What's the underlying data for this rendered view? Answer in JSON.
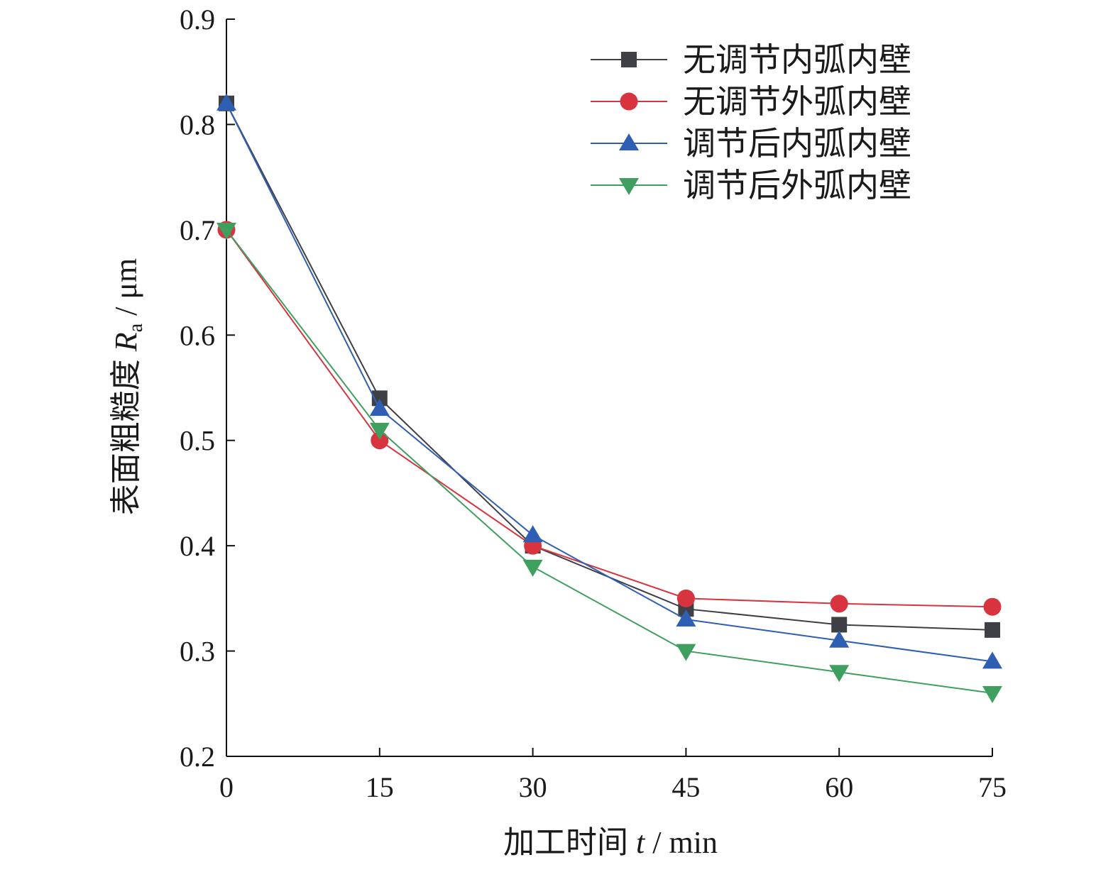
{
  "chart_data": {
    "type": "line",
    "x": [
      0,
      15,
      30,
      45,
      60,
      75
    ],
    "x_tick_labels": [
      "0",
      "15",
      "30",
      "45",
      "60",
      "75"
    ],
    "y_tick_labels": [
      "0.2",
      "0.3",
      "0.4",
      "0.5",
      "0.6",
      "0.7",
      "0.8",
      "0.9"
    ],
    "xlim": [
      0,
      75
    ],
    "ylim": [
      0.2,
      0.9
    ],
    "xlabel": {
      "prefix": "加工时间 ",
      "symbol": "t",
      "unit": " / min"
    },
    "ylabel": {
      "prefix": "表面粗糙度 ",
      "symbol": "R",
      "subscript": "a",
      "unit": " / μm"
    },
    "grid": false,
    "legend_position": "top-right",
    "series": [
      {
        "name": "无调节内弧内壁",
        "marker": "square",
        "color": "#3f3f46",
        "values": [
          0.82,
          0.54,
          0.4,
          0.34,
          0.325,
          0.32
        ]
      },
      {
        "name": "无调节外弧内壁",
        "marker": "circle",
        "color": "#d8343f",
        "values": [
          0.7,
          0.5,
          0.4,
          0.35,
          0.345,
          0.342
        ]
      },
      {
        "name": "调节后内弧内壁",
        "marker": "triangle-up",
        "color": "#2f5fb3",
        "values": [
          0.82,
          0.53,
          0.41,
          0.33,
          0.31,
          0.29
        ]
      },
      {
        "name": "调节后外弧内壁",
        "marker": "triangle-down",
        "color": "#3f9f5f",
        "values": [
          0.7,
          0.51,
          0.38,
          0.3,
          0.28,
          0.26
        ]
      }
    ]
  }
}
